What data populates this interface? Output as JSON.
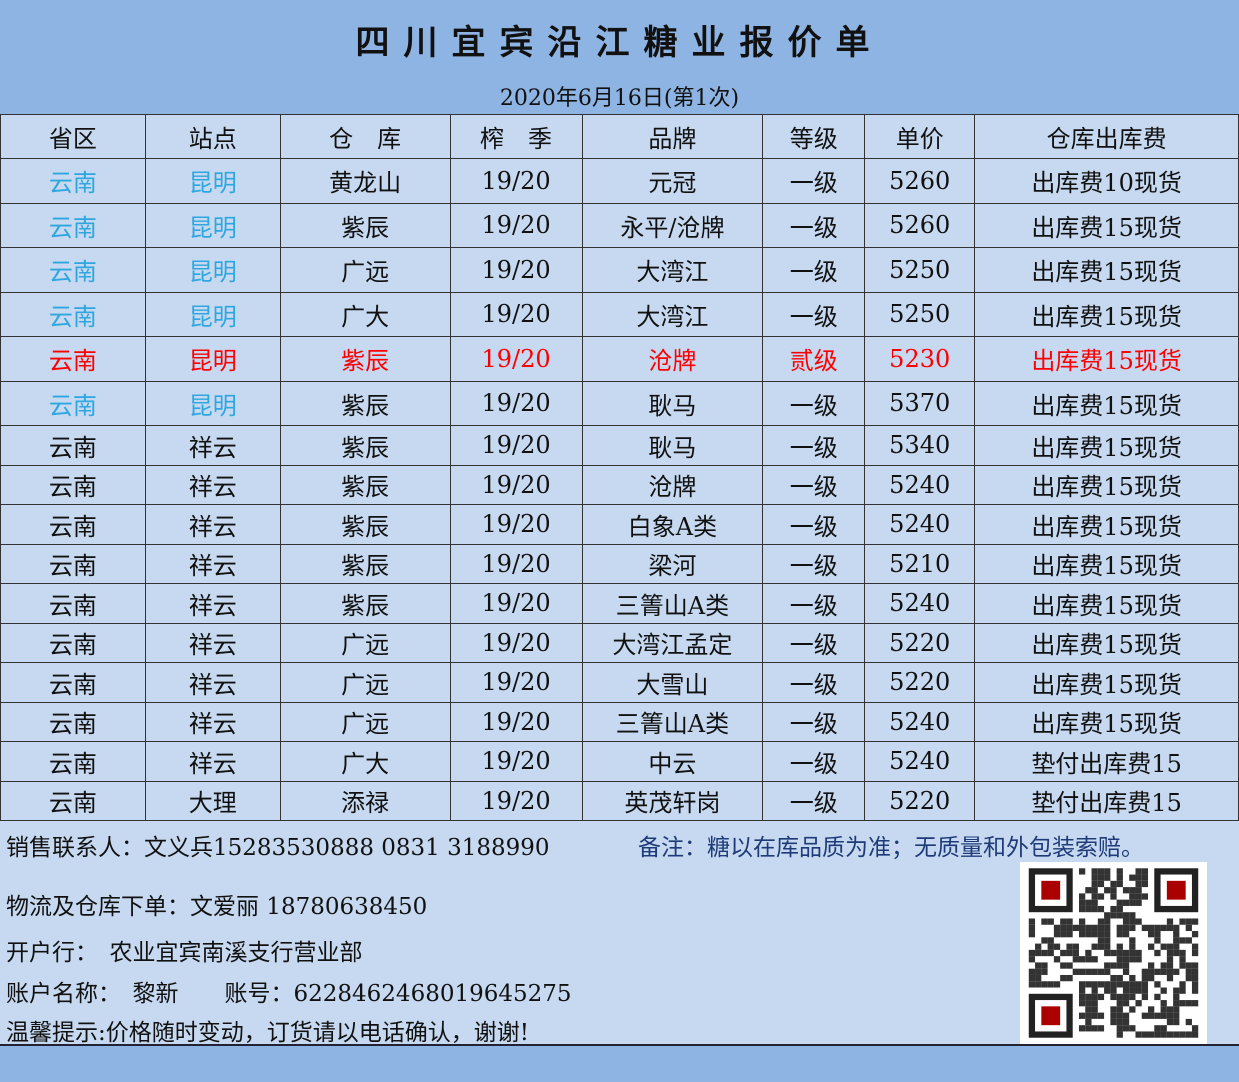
{
  "title": "四川宜宾沿江糖业报价单",
  "subtitle": "2020年6月16日(第1次)",
  "colors": {
    "header_band": "#8EB4E3",
    "table_bg": "#C6D9F0",
    "highlight_blue": "#2EA6E0",
    "highlight_red": "#FF0000",
    "note_text": "#1F3A78"
  },
  "columns": [
    "省区",
    "站点",
    "仓　库",
    "榨　季",
    "品牌",
    "等级",
    "单价",
    "仓库出库费"
  ],
  "rows": [
    {
      "province": "云南",
      "station": "昆明",
      "warehouse": "黄龙山",
      "season": "19/20",
      "brand": "元冠",
      "grade": "一级",
      "price": "5260",
      "fee": "出库费10现货",
      "style": "blue"
    },
    {
      "province": "云南",
      "station": "昆明",
      "warehouse": "紫辰",
      "season": "19/20",
      "brand": "永平/沧牌",
      "grade": "一级",
      "price": "5260",
      "fee": "出库费15现货",
      "style": "blue"
    },
    {
      "province": "云南",
      "station": "昆明",
      "warehouse": "广远",
      "season": "19/20",
      "brand": "大湾江",
      "grade": "一级",
      "price": "5250",
      "fee": "出库费15现货",
      "style": "blue"
    },
    {
      "province": "云南",
      "station": "昆明",
      "warehouse": "广大",
      "season": "19/20",
      "brand": "大湾江",
      "grade": "一级",
      "price": "5250",
      "fee": "出库费15现货",
      "style": "blue"
    },
    {
      "province": "云南",
      "station": "昆明",
      "warehouse": "紫辰",
      "season": "19/20",
      "brand": "沧牌",
      "grade": "贰级",
      "price": "5230",
      "fee": "出库费15现货",
      "style": "red"
    },
    {
      "province": "云南",
      "station": "昆明",
      "warehouse": "紫辰",
      "season": "19/20",
      "brand": "耿马",
      "grade": "一级",
      "price": "5370",
      "fee": "出库费15现货",
      "style": "blue"
    },
    {
      "province": "云南",
      "station": "祥云",
      "warehouse": "紫辰",
      "season": "19/20",
      "brand": "耿马",
      "grade": "一级",
      "price": "5340",
      "fee": "出库费15现货",
      "style": ""
    },
    {
      "province": "云南",
      "station": "祥云",
      "warehouse": "紫辰",
      "season": "19/20",
      "brand": "沧牌",
      "grade": "一级",
      "price": "5240",
      "fee": "出库费15现货",
      "style": ""
    },
    {
      "province": "云南",
      "station": "祥云",
      "warehouse": "紫辰",
      "season": "19/20",
      "brand": "白象A类",
      "grade": "一级",
      "price": "5240",
      "fee": "出库费15现货",
      "style": ""
    },
    {
      "province": "云南",
      "station": "祥云",
      "warehouse": "紫辰",
      "season": "19/20",
      "brand": "梁河",
      "grade": "一级",
      "price": "5210",
      "fee": "出库费15现货",
      "style": ""
    },
    {
      "province": "云南",
      "station": "祥云",
      "warehouse": "紫辰",
      "season": "19/20",
      "brand": "三箐山A类",
      "grade": "一级",
      "price": "5240",
      "fee": "出库费15现货",
      "style": ""
    },
    {
      "province": "云南",
      "station": "祥云",
      "warehouse": "广远",
      "season": "19/20",
      "brand": "大湾江孟定",
      "grade": "一级",
      "price": "5220",
      "fee": "出库费15现货",
      "style": ""
    },
    {
      "province": "云南",
      "station": "祥云",
      "warehouse": "广远",
      "season": "19/20",
      "brand": "大雪山",
      "grade": "一级",
      "price": "5220",
      "fee": "出库费15现货",
      "style": ""
    },
    {
      "province": "云南",
      "station": "祥云",
      "warehouse": "广远",
      "season": "19/20",
      "brand": "三箐山A类",
      "grade": "一级",
      "price": "5240",
      "fee": "出库费15现货",
      "style": ""
    },
    {
      "province": "云南",
      "station": "祥云",
      "warehouse": "广大",
      "season": "19/20",
      "brand": "中云",
      "grade": "一级",
      "price": "5240",
      "fee": "垫付出库费15",
      "style": ""
    },
    {
      "province": "云南",
      "station": "大理",
      "warehouse": "添禄",
      "season": "19/20",
      "brand": "英茂轩岗",
      "grade": "一级",
      "price": "5220",
      "fee": "垫付出库费15",
      "style": ""
    }
  ],
  "footer": {
    "sales_contact": "销售联系人：文义兵15283530888 0831 3188990",
    "note": "备注：糖以在库品质为准；无质量和外包装索赔。",
    "logistics": "物流及仓库下单：文爱丽 18780638450",
    "bank": "开户行：　农业宜宾南溪支行营业部",
    "account": "账户名称：　黎新　　账号：6228462468019645275",
    "tip": "温馨提示:价格随时变动，订货请以电话确认，谢谢!"
  },
  "qr_icon": "qr-code-icon"
}
